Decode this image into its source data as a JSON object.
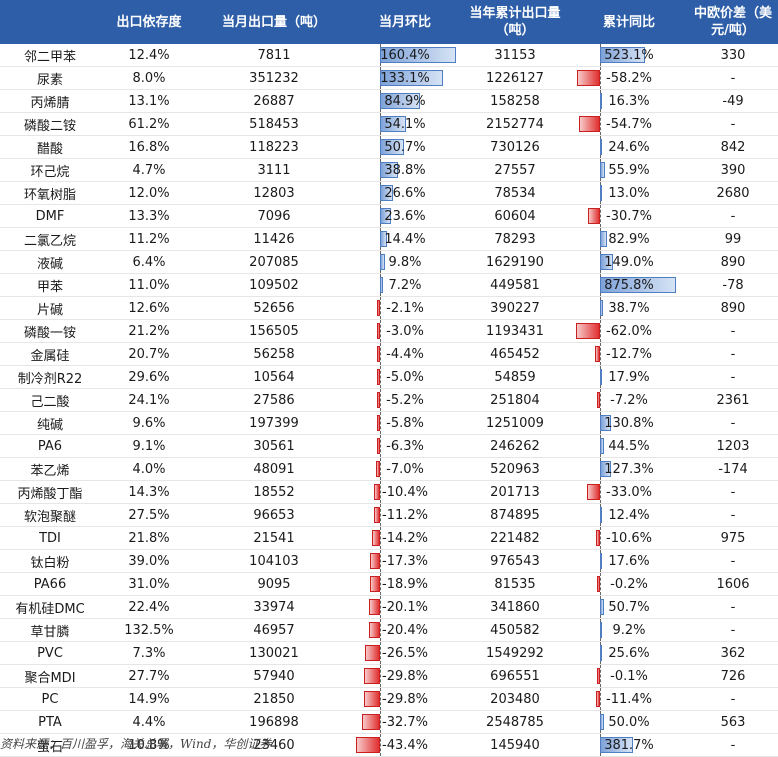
{
  "headers": {
    "name": "",
    "export_dependency": "出口依存度",
    "monthly_export": "当月出口量（吨）",
    "mom": "当月环比",
    "ytd_export": "当年累计出口量（吨）",
    "ytd_yoy": "累计同比",
    "spread": "中欧价差（美元/吨）"
  },
  "rows": [
    {
      "name": "邻二甲苯",
      "dep": "12.4%",
      "monthly": "7811",
      "mom": "160.4%",
      "ytd": "31153",
      "yoy": "523.1%",
      "spread": "330"
    },
    {
      "name": "尿素",
      "dep": "8.0%",
      "monthly": "351232",
      "mom": "133.1%",
      "ytd": "1226127",
      "yoy": "-58.2%",
      "spread": "-"
    },
    {
      "name": "丙烯腈",
      "dep": "13.1%",
      "monthly": "26887",
      "mom": "84.9%",
      "ytd": "158258",
      "yoy": "16.3%",
      "spread": "-49"
    },
    {
      "name": "磷酸二铵",
      "dep": "61.2%",
      "monthly": "518453",
      "mom": "54.1%",
      "ytd": "2152774",
      "yoy": "-54.7%",
      "spread": "-"
    },
    {
      "name": "醋酸",
      "dep": "16.8%",
      "monthly": "118223",
      "mom": "50.7%",
      "ytd": "730126",
      "yoy": "24.6%",
      "spread": "842"
    },
    {
      "name": "环己烷",
      "dep": "4.7%",
      "monthly": "3111",
      "mom": "38.8%",
      "ytd": "27557",
      "yoy": "55.9%",
      "spread": "390"
    },
    {
      "name": "环氧树脂",
      "dep": "12.0%",
      "monthly": "12803",
      "mom": "26.6%",
      "ytd": "78534",
      "yoy": "13.0%",
      "spread": "2680"
    },
    {
      "name": "DMF",
      "dep": "13.3%",
      "monthly": "7096",
      "mom": "23.6%",
      "ytd": "60604",
      "yoy": "-30.7%",
      "spread": "-"
    },
    {
      "name": "二氯乙烷",
      "dep": "11.2%",
      "monthly": "11426",
      "mom": "14.4%",
      "ytd": "78293",
      "yoy": "82.9%",
      "spread": "99"
    },
    {
      "name": "液碱",
      "dep": "6.4%",
      "monthly": "207085",
      "mom": "9.8%",
      "ytd": "1629190",
      "yoy": "149.0%",
      "spread": "890"
    },
    {
      "name": "甲苯",
      "dep": "11.0%",
      "monthly": "109502",
      "mom": "7.2%",
      "ytd": "449581",
      "yoy": "875.8%",
      "spread": "-78"
    },
    {
      "name": "片碱",
      "dep": "12.6%",
      "monthly": "52656",
      "mom": "-2.1%",
      "ytd": "390227",
      "yoy": "38.7%",
      "spread": "890"
    },
    {
      "name": "磷酸一铵",
      "dep": "21.2%",
      "monthly": "156505",
      "mom": "-3.0%",
      "ytd": "1193431",
      "yoy": "-62.0%",
      "spread": "-"
    },
    {
      "name": "金属硅",
      "dep": "20.7%",
      "monthly": "56258",
      "mom": "-4.4%",
      "ytd": "465452",
      "yoy": "-12.7%",
      "spread": "-"
    },
    {
      "name": "制冷剂R22",
      "dep": "29.6%",
      "monthly": "10564",
      "mom": "-5.0%",
      "ytd": "54859",
      "yoy": "17.9%",
      "spread": "-"
    },
    {
      "name": "己二酸",
      "dep": "24.1%",
      "monthly": "27586",
      "mom": "-5.2%",
      "ytd": "251804",
      "yoy": "-7.2%",
      "spread": "2361"
    },
    {
      "name": "纯碱",
      "dep": "9.6%",
      "monthly": "197399",
      "mom": "-5.8%",
      "ytd": "1251009",
      "yoy": "130.8%",
      "spread": "-"
    },
    {
      "name": "PA6",
      "dep": "9.1%",
      "monthly": "30561",
      "mom": "-6.3%",
      "ytd": "246262",
      "yoy": "44.5%",
      "spread": "1203"
    },
    {
      "name": "苯乙烯",
      "dep": "4.0%",
      "monthly": "48091",
      "mom": "-7.0%",
      "ytd": "520963",
      "yoy": "127.3%",
      "spread": "-174"
    },
    {
      "name": "丙烯酸丁酯",
      "dep": "14.3%",
      "monthly": "18552",
      "mom": "-10.4%",
      "ytd": "201713",
      "yoy": "-33.0%",
      "spread": "-"
    },
    {
      "name": "软泡聚醚",
      "dep": "27.5%",
      "monthly": "96653",
      "mom": "-11.2%",
      "ytd": "874895",
      "yoy": "12.4%",
      "spread": "-"
    },
    {
      "name": "TDI",
      "dep": "21.8%",
      "monthly": "21541",
      "mom": "-14.2%",
      "ytd": "221482",
      "yoy": "-10.6%",
      "spread": "975"
    },
    {
      "name": "钛白粉",
      "dep": "39.0%",
      "monthly": "104103",
      "mom": "-17.3%",
      "ytd": "976543",
      "yoy": "17.6%",
      "spread": "-"
    },
    {
      "name": "PA66",
      "dep": "31.0%",
      "monthly": "9095",
      "mom": "-18.9%",
      "ytd": "81535",
      "yoy": "-0.2%",
      "spread": "1606"
    },
    {
      "name": "有机硅DMC",
      "dep": "22.4%",
      "monthly": "33974",
      "mom": "-20.1%",
      "ytd": "341860",
      "yoy": "50.7%",
      "spread": "-"
    },
    {
      "name": "草甘膦",
      "dep": "132.5%",
      "monthly": "46957",
      "mom": "-20.4%",
      "ytd": "450582",
      "yoy": "9.2%",
      "spread": "-"
    },
    {
      "name": "PVC",
      "dep": "7.3%",
      "monthly": "130021",
      "mom": "-26.5%",
      "ytd": "1549292",
      "yoy": "25.6%",
      "spread": "362"
    },
    {
      "name": "聚合MDI",
      "dep": "27.7%",
      "monthly": "57940",
      "mom": "-29.8%",
      "ytd": "696551",
      "yoy": "-0.1%",
      "spread": "726"
    },
    {
      "name": "PC",
      "dep": "14.9%",
      "monthly": "21850",
      "mom": "-29.8%",
      "ytd": "203480",
      "yoy": "-11.4%",
      "spread": "-"
    },
    {
      "name": "PTA",
      "dep": "4.4%",
      "monthly": "196898",
      "mom": "-32.7%",
      "ytd": "2548785",
      "yoy": "50.0%",
      "spread": "563"
    },
    {
      "name": "萤石",
      "dep": "10.8%",
      "monthly": "23460",
      "mom": "-43.4%",
      "ytd": "145940",
      "yoy": "381.7%",
      "spread": "-"
    }
  ],
  "bar_colors": {
    "positive": "#7ea2d8",
    "negative": "#e03030"
  },
  "footer": "资料来源：百川盈孚，海关总署，Wind，华创证券"
}
